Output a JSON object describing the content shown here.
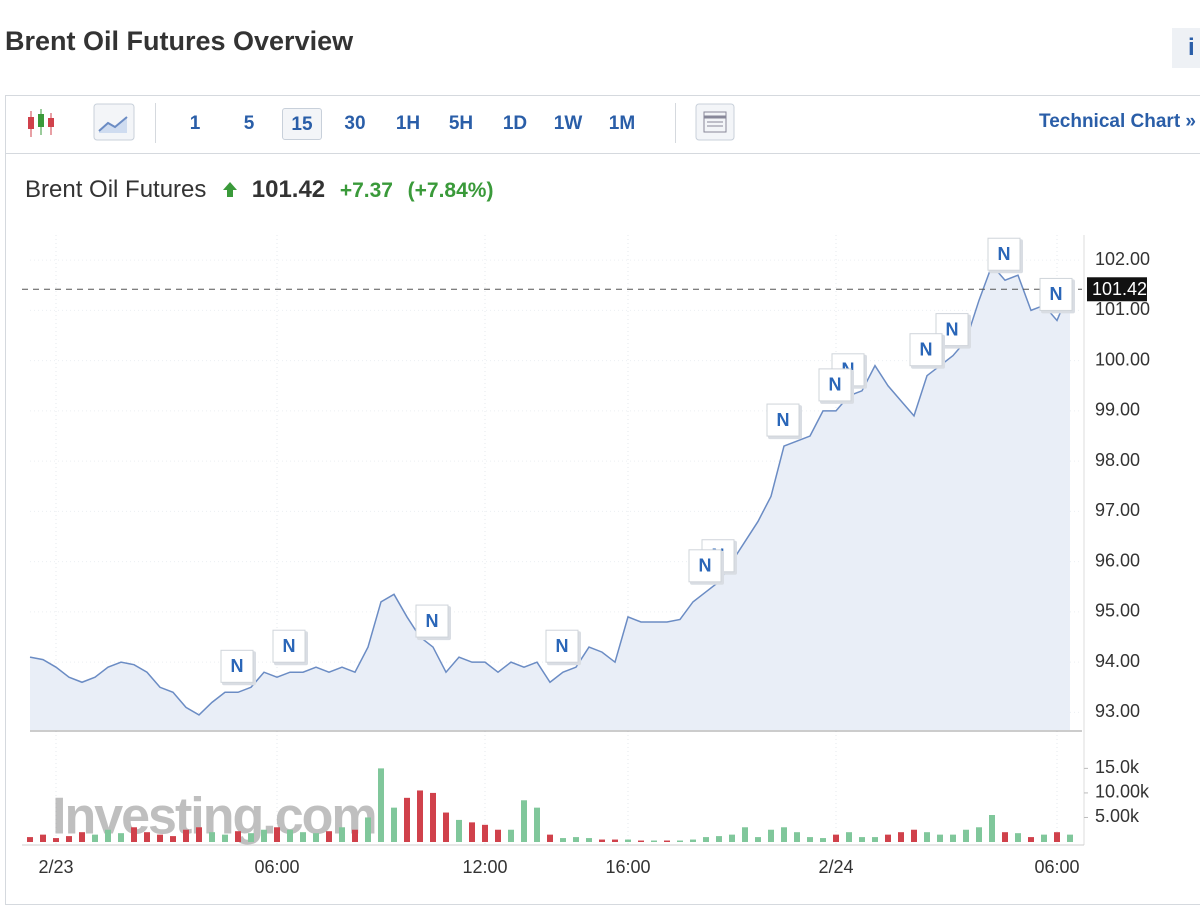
{
  "header": {
    "title": "Brent Oil Futures Overview",
    "info": "i"
  },
  "toolbar": {
    "intervals": [
      "1",
      "5",
      "15",
      "30",
      "1H",
      "5H",
      "1D",
      "1W",
      "1M"
    ],
    "link": "Technical Chart »"
  },
  "quote": {
    "name": "Brent Oil Futures",
    "price": "101.42",
    "change": "+7.37",
    "change_pct": "(+7.84%)"
  },
  "watermark": "Investing.com",
  "chart_data": [
    {
      "type": "area",
      "color": "#6b8cc4",
      "fill": "#e9eef7",
      "categories": [
        null,
        null,
        "2/23",
        null,
        null,
        null,
        null,
        null,
        null,
        null,
        null,
        null,
        null,
        null,
        null,
        null,
        null,
        null,
        null,
        "06:00",
        null,
        null,
        null,
        null,
        null,
        null,
        null,
        null,
        null,
        null,
        null,
        null,
        null,
        null,
        null,
        "12:00",
        null,
        null,
        null,
        null,
        null,
        null,
        null,
        null,
        null,
        null,
        "16:00",
        null,
        null,
        null,
        null,
        null,
        null,
        null,
        null,
        null,
        null,
        null,
        null,
        null,
        null,
        null,
        "2/24",
        null,
        null,
        null,
        null,
        null,
        null,
        null,
        null,
        null,
        null,
        null,
        null,
        null,
        null,
        null,
        null,
        "06:00",
        null
      ],
      "values": [
        94.1,
        94.05,
        93.9,
        93.7,
        93.6,
        93.7,
        93.9,
        94.0,
        93.95,
        93.8,
        93.5,
        93.4,
        93.1,
        92.95,
        93.2,
        93.4,
        93.4,
        93.5,
        93.8,
        93.7,
        93.8,
        93.8,
        93.9,
        93.8,
        93.9,
        93.8,
        94.3,
        95.2,
        95.35,
        94.9,
        94.5,
        94.3,
        93.8,
        94.1,
        94.0,
        94.0,
        93.8,
        94.0,
        93.9,
        94.0,
        93.6,
        93.8,
        93.9,
        94.3,
        94.2,
        94.0,
        94.9,
        94.8,
        94.8,
        94.8,
        94.85,
        95.2,
        95.4,
        95.6,
        96.0,
        96.4,
        96.8,
        97.3,
        98.3,
        98.4,
        98.5,
        99.0,
        99.0,
        99.3,
        99.4,
        99.9,
        99.5,
        99.2,
        98.9,
        99.7,
        99.9,
        100.1,
        100.4,
        101.2,
        101.9,
        101.6,
        101.7,
        101.0,
        101.1,
        100.8,
        101.42
      ],
      "ylim": [
        92.65,
        102.5
      ],
      "yticks": [
        {
          "value": 93,
          "label": "93.00"
        },
        {
          "value": 94,
          "label": "94.00"
        },
        {
          "value": 95,
          "label": "95.00"
        },
        {
          "value": 96,
          "label": "96.00"
        },
        {
          "value": 97,
          "label": "97.00"
        },
        {
          "value": 98,
          "label": "98.00"
        },
        {
          "value": 99,
          "label": "99.00"
        },
        {
          "value": 100,
          "label": "100.00"
        },
        {
          "value": 101,
          "label": "101.00"
        },
        {
          "value": 102,
          "label": "102.00"
        }
      ],
      "last_value": 101.42,
      "news": [
        {
          "label": "N",
          "index": 16
        },
        {
          "label": "N",
          "index": 20
        },
        {
          "label": "N",
          "index": 31
        },
        {
          "label": "N",
          "index": 41
        },
        {
          "label": "N",
          "index": 53
        },
        {
          "label": "N",
          "index": 52
        },
        {
          "label": "N",
          "index": 58
        },
        {
          "label": "N",
          "index": 63
        },
        {
          "label": "N",
          "index": 62
        },
        {
          "label": "N",
          "index": 71
        },
        {
          "label": "N",
          "index": 69
        },
        {
          "label": "N",
          "index": 75
        },
        {
          "label": "N",
          "index": 79
        }
      ],
      "grid": true
    },
    {
      "type": "bar",
      "values": [
        1000,
        1500,
        800,
        1200,
        2000,
        1500,
        2500,
        1800,
        3000,
        2000,
        1500,
        1200,
        2500,
        3000,
        2000,
        1500,
        2200,
        1800,
        2500,
        3000,
        2500,
        2000,
        1800,
        2200,
        3000,
        2500,
        5000,
        15000,
        7000,
        9000,
        10500,
        10000,
        6000,
        4500,
        4000,
        3500,
        2500,
        2500,
        8500,
        7000,
        1500,
        800,
        1000,
        800,
        500,
        500,
        500,
        300,
        300,
        300,
        300,
        500,
        1000,
        1200,
        1500,
        3000,
        1000,
        2500,
        3000,
        2000,
        1000,
        800,
        1500,
        2000,
        1000,
        1000,
        1500,
        2000,
        2500,
        2000,
        1500,
        1500,
        2500,
        3000,
        5500,
        2000,
        1800,
        1000,
        1500,
        2000,
        1500
      ],
      "colors": [
        "#d0414b",
        "#d0414b",
        "#d0414b",
        "#d0414b",
        "#d0414b",
        "#80c79b",
        "#80c79b",
        "#80c79b",
        "#d0414b",
        "#d0414b",
        "#d0414b",
        "#d0414b",
        "#d0414b",
        "#d0414b",
        "#80c79b",
        "#80c79b",
        "#d0414b",
        "#80c79b",
        "#80c79b",
        "#d0414b",
        "#80c79b",
        "#80c79b",
        "#80c79b",
        "#d0414b",
        "#80c79b",
        "#d0414b",
        "#80c79b",
        "#80c79b",
        "#80c79b",
        "#d0414b",
        "#d0414b",
        "#d0414b",
        "#d0414b",
        "#80c79b",
        "#d0414b",
        "#d0414b",
        "#d0414b",
        "#80c79b",
        "#80c79b",
        "#80c79b",
        "#d0414b",
        "#80c79b",
        "#80c79b",
        "#80c79b",
        "#d0414b",
        "#d0414b",
        "#80c79b",
        "#d0414b",
        "#80c79b",
        "#d0414b",
        "#80c79b",
        "#80c79b",
        "#80c79b",
        "#80c79b",
        "#80c79b",
        "#80c79b",
        "#80c79b",
        "#80c79b",
        "#80c79b",
        "#80c79b",
        "#80c79b",
        "#80c79b",
        "#d0414b",
        "#80c79b",
        "#80c79b",
        "#80c79b",
        "#d0414b",
        "#d0414b",
        "#d0414b",
        "#80c79b",
        "#80c79b",
        "#80c79b",
        "#80c79b",
        "#80c79b",
        "#80c79b",
        "#d0414b",
        "#80c79b",
        "#d0414b",
        "#80c79b",
        "#d0414b",
        "#80c79b"
      ],
      "ylim": [
        0,
        21800
      ],
      "yticks": [
        {
          "value": 5000,
          "label": "5.00k"
        },
        {
          "value": 10000,
          "label": "10.00k"
        },
        {
          "value": 15000,
          "label": "15.0k"
        }
      ]
    }
  ]
}
